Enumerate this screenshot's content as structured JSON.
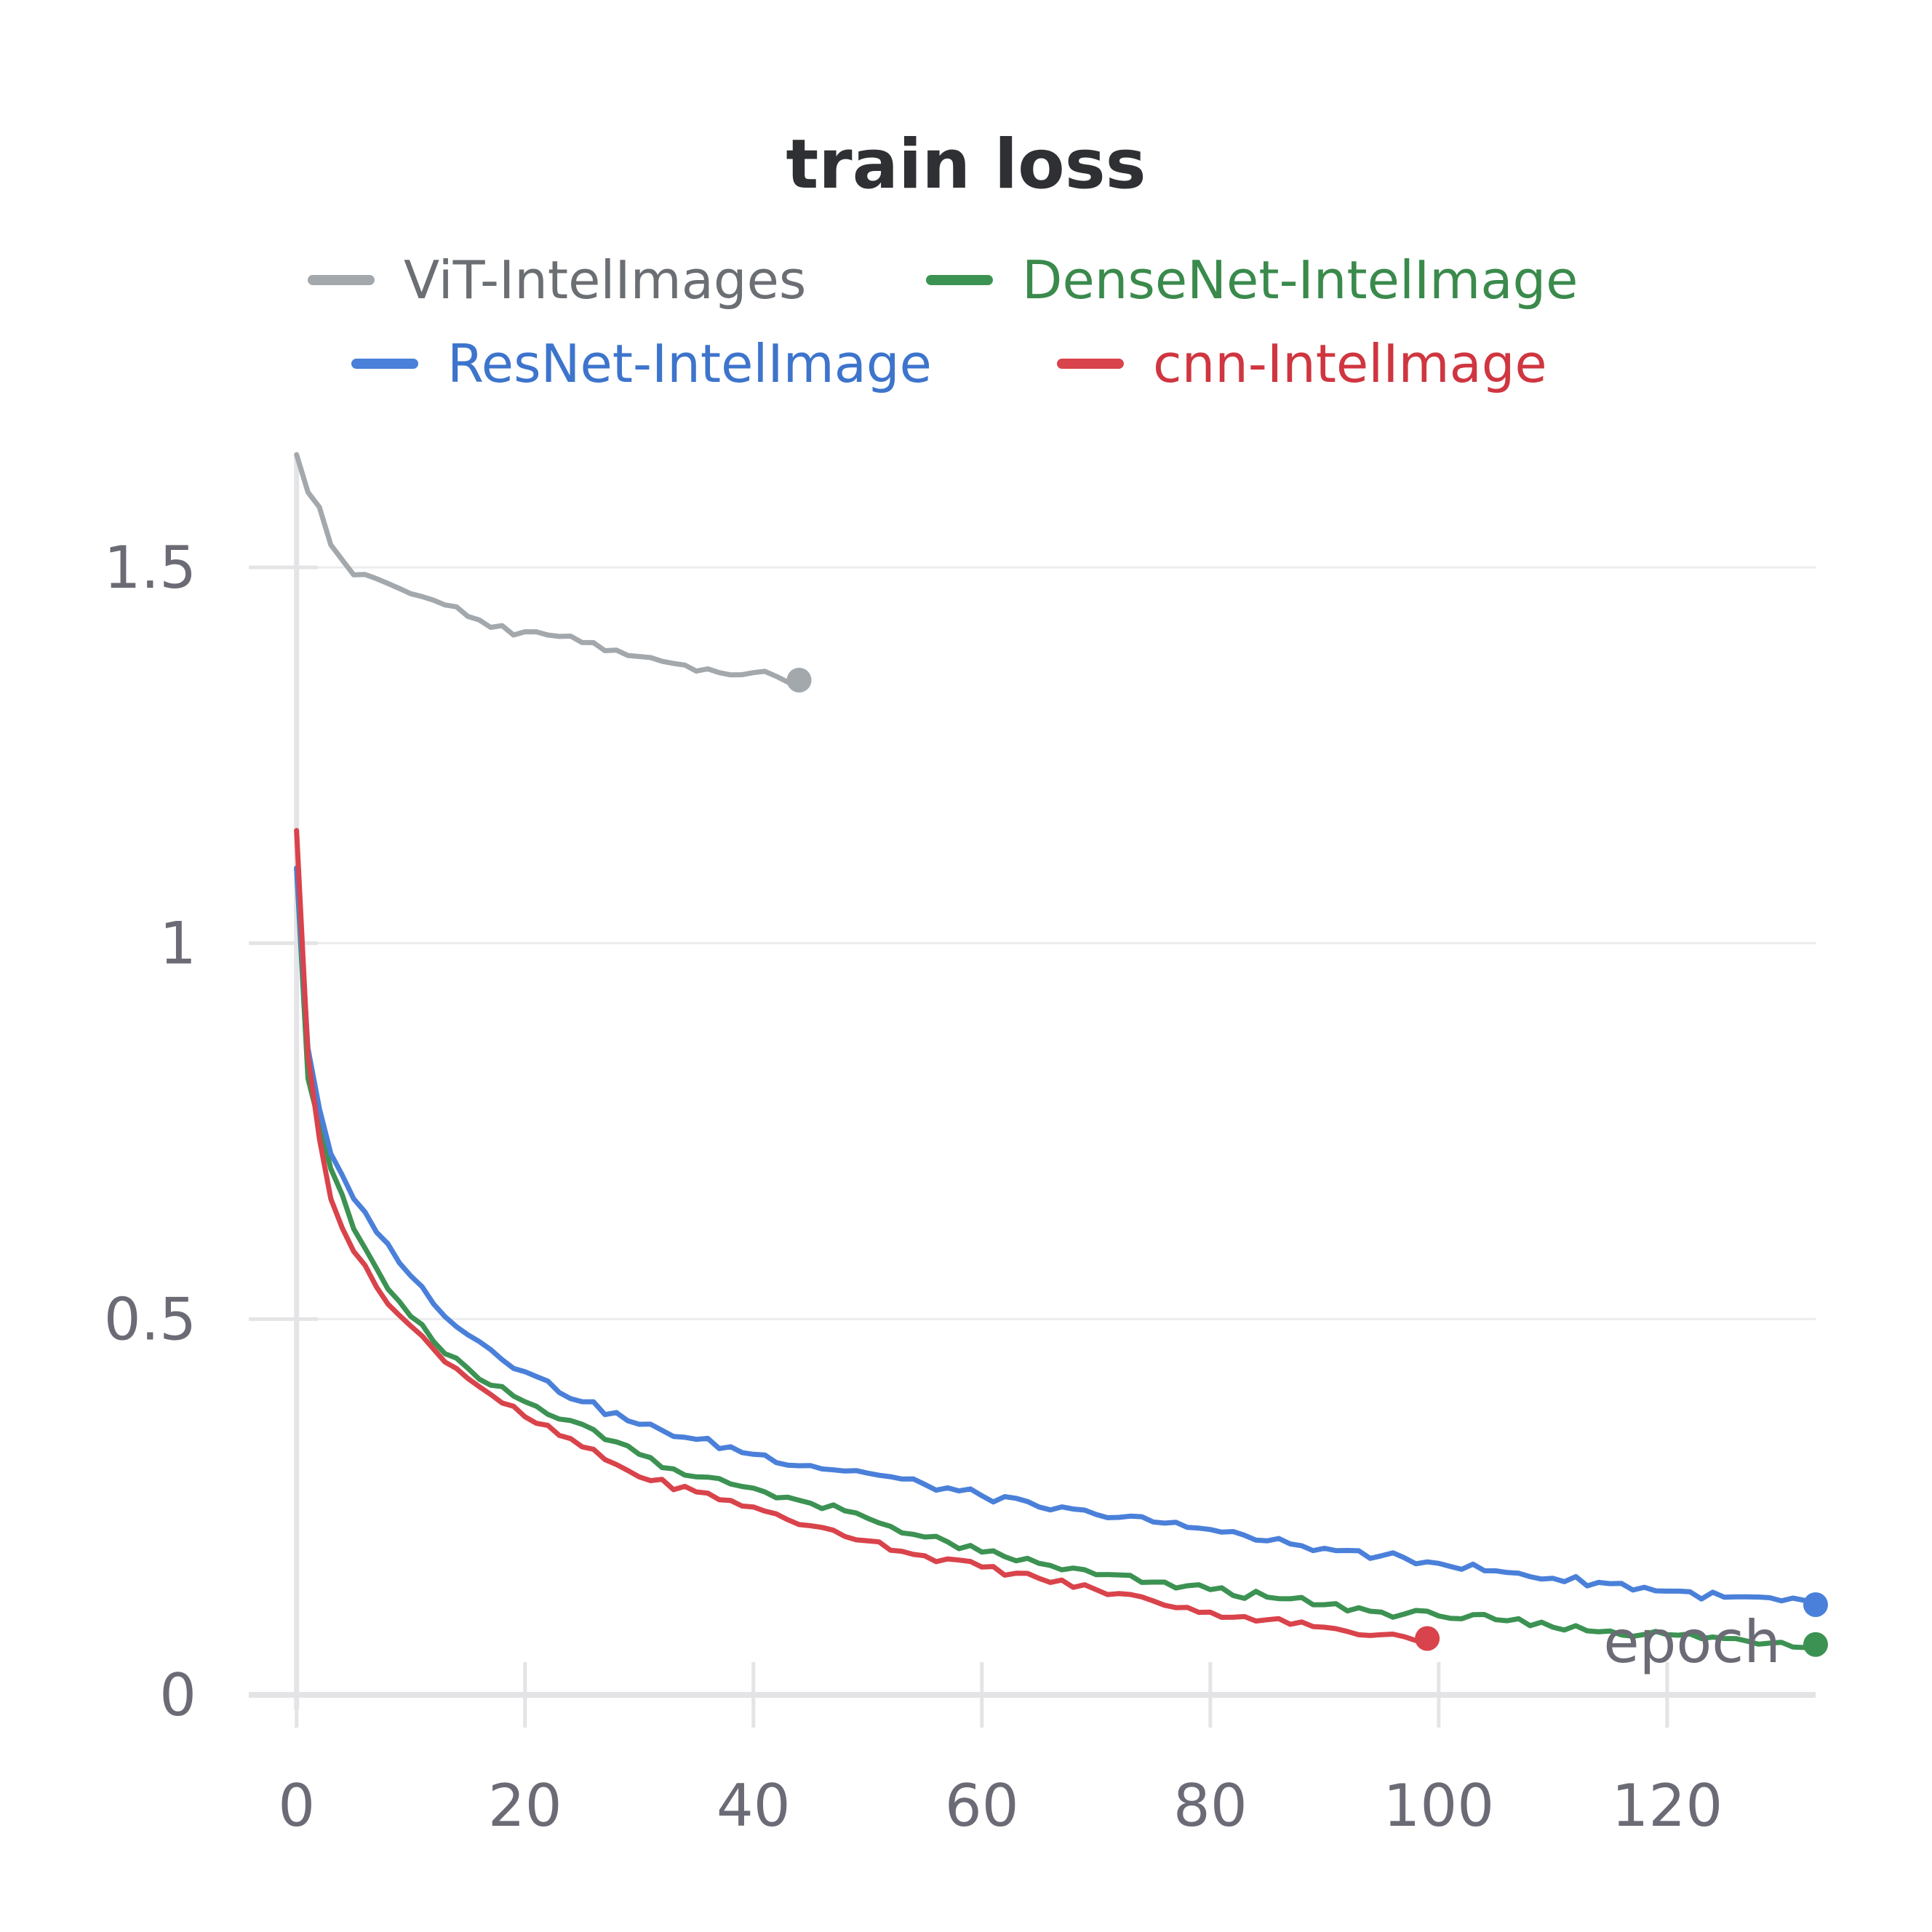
{
  "chart_data": {
    "type": "line",
    "title": "train loss",
    "xlabel": "epoch",
    "ylabel": "",
    "xlim": [
      -1,
      133
    ],
    "ylim": [
      0,
      1.65
    ],
    "xticks": [
      0,
      20,
      40,
      60,
      80,
      100,
      120
    ],
    "yticks": [
      0,
      0.5,
      1,
      1.5
    ],
    "xtick_labels": [
      "0",
      "20",
      "40",
      "60",
      "80",
      "100",
      "120"
    ],
    "ytick_labels": [
      "0",
      "0.5",
      "1",
      "1.5"
    ],
    "grid": "horizontal",
    "legend": "top",
    "colors": {
      "axis": "#e4e4e7",
      "grid": "#ececee",
      "tick_text": "#6b6b76",
      "title": "#2f3033"
    },
    "series": [
      {
        "name": "ViT-IntelImages",
        "color": "#a3a8ad",
        "legend_text_color": "#6b6e73",
        "anchors": [
          [
            0,
            1.65
          ],
          [
            1,
            1.6
          ],
          [
            2,
            1.58
          ],
          [
            3,
            1.53
          ],
          [
            4,
            1.51
          ],
          [
            5,
            1.49
          ],
          [
            7,
            1.485
          ],
          [
            10,
            1.465
          ],
          [
            13,
            1.45
          ],
          [
            16,
            1.43
          ],
          [
            19,
            1.41
          ],
          [
            22,
            1.41
          ],
          [
            25,
            1.4
          ],
          [
            28,
            1.39
          ],
          [
            31,
            1.38
          ],
          [
            34,
            1.37
          ],
          [
            37,
            1.36
          ],
          [
            40,
            1.36
          ],
          [
            42,
            1.355
          ],
          [
            44,
            1.35
          ]
        ],
        "noise": 0.006
      },
      {
        "name": "DenseNet-IntelImage",
        "color": "#3c9252",
        "legend_text_color": "#3a8a4c",
        "anchors": [
          [
            0,
            1.1
          ],
          [
            1,
            0.82
          ],
          [
            2,
            0.76
          ],
          [
            3,
            0.7
          ],
          [
            5,
            0.62
          ],
          [
            8,
            0.54
          ],
          [
            12,
            0.47
          ],
          [
            16,
            0.42
          ],
          [
            20,
            0.39
          ],
          [
            25,
            0.36
          ],
          [
            30,
            0.32
          ],
          [
            35,
            0.29
          ],
          [
            40,
            0.275
          ],
          [
            45,
            0.255
          ],
          [
            50,
            0.235
          ],
          [
            55,
            0.21
          ],
          [
            60,
            0.19
          ],
          [
            65,
            0.175
          ],
          [
            70,
            0.16
          ],
          [
            75,
            0.15
          ],
          [
            80,
            0.14
          ],
          [
            85,
            0.13
          ],
          [
            90,
            0.12
          ],
          [
            95,
            0.11
          ],
          [
            100,
            0.105
          ],
          [
            105,
            0.1
          ],
          [
            110,
            0.09
          ],
          [
            115,
            0.085
          ],
          [
            120,
            0.08
          ],
          [
            125,
            0.075
          ],
          [
            130,
            0.07
          ],
          [
            133,
            0.067
          ]
        ],
        "noise": 0.006
      },
      {
        "name": "ResNet-IntelImage",
        "color": "#4a80d9",
        "legend_text_color": "#3d74cc",
        "anchors": [
          [
            0,
            1.1
          ],
          [
            1,
            0.86
          ],
          [
            2,
            0.78
          ],
          [
            3,
            0.72
          ],
          [
            5,
            0.66
          ],
          [
            8,
            0.6
          ],
          [
            12,
            0.52
          ],
          [
            16,
            0.47
          ],
          [
            20,
            0.43
          ],
          [
            25,
            0.39
          ],
          [
            30,
            0.36
          ],
          [
            35,
            0.34
          ],
          [
            40,
            0.32
          ],
          [
            45,
            0.305
          ],
          [
            50,
            0.295
          ],
          [
            55,
            0.28
          ],
          [
            60,
            0.265
          ],
          [
            65,
            0.25
          ],
          [
            70,
            0.24
          ],
          [
            75,
            0.23
          ],
          [
            80,
            0.22
          ],
          [
            85,
            0.205
          ],
          [
            90,
            0.195
          ],
          [
            95,
            0.185
          ],
          [
            100,
            0.175
          ],
          [
            105,
            0.165
          ],
          [
            110,
            0.155
          ],
          [
            115,
            0.148
          ],
          [
            120,
            0.138
          ],
          [
            125,
            0.13
          ],
          [
            130,
            0.125
          ],
          [
            133,
            0.12
          ]
        ],
        "noise": 0.006
      },
      {
        "name": "cnn-IntelImage",
        "color": "#d9434b",
        "legend_text_color": "#cf3640",
        "anchors": [
          [
            0,
            1.15
          ],
          [
            1,
            0.85
          ],
          [
            2,
            0.74
          ],
          [
            3,
            0.66
          ],
          [
            5,
            0.59
          ],
          [
            8,
            0.52
          ],
          [
            12,
            0.46
          ],
          [
            16,
            0.41
          ],
          [
            20,
            0.37
          ],
          [
            25,
            0.33
          ],
          [
            30,
            0.29
          ],
          [
            35,
            0.27
          ],
          [
            40,
            0.25
          ],
          [
            45,
            0.225
          ],
          [
            50,
            0.205
          ],
          [
            55,
            0.185
          ],
          [
            60,
            0.17
          ],
          [
            65,
            0.155
          ],
          [
            70,
            0.14
          ],
          [
            75,
            0.125
          ],
          [
            80,
            0.11
          ],
          [
            85,
            0.1
          ],
          [
            90,
            0.09
          ],
          [
            95,
            0.08
          ],
          [
            99,
            0.075
          ]
        ],
        "noise": 0.005
      }
    ]
  }
}
